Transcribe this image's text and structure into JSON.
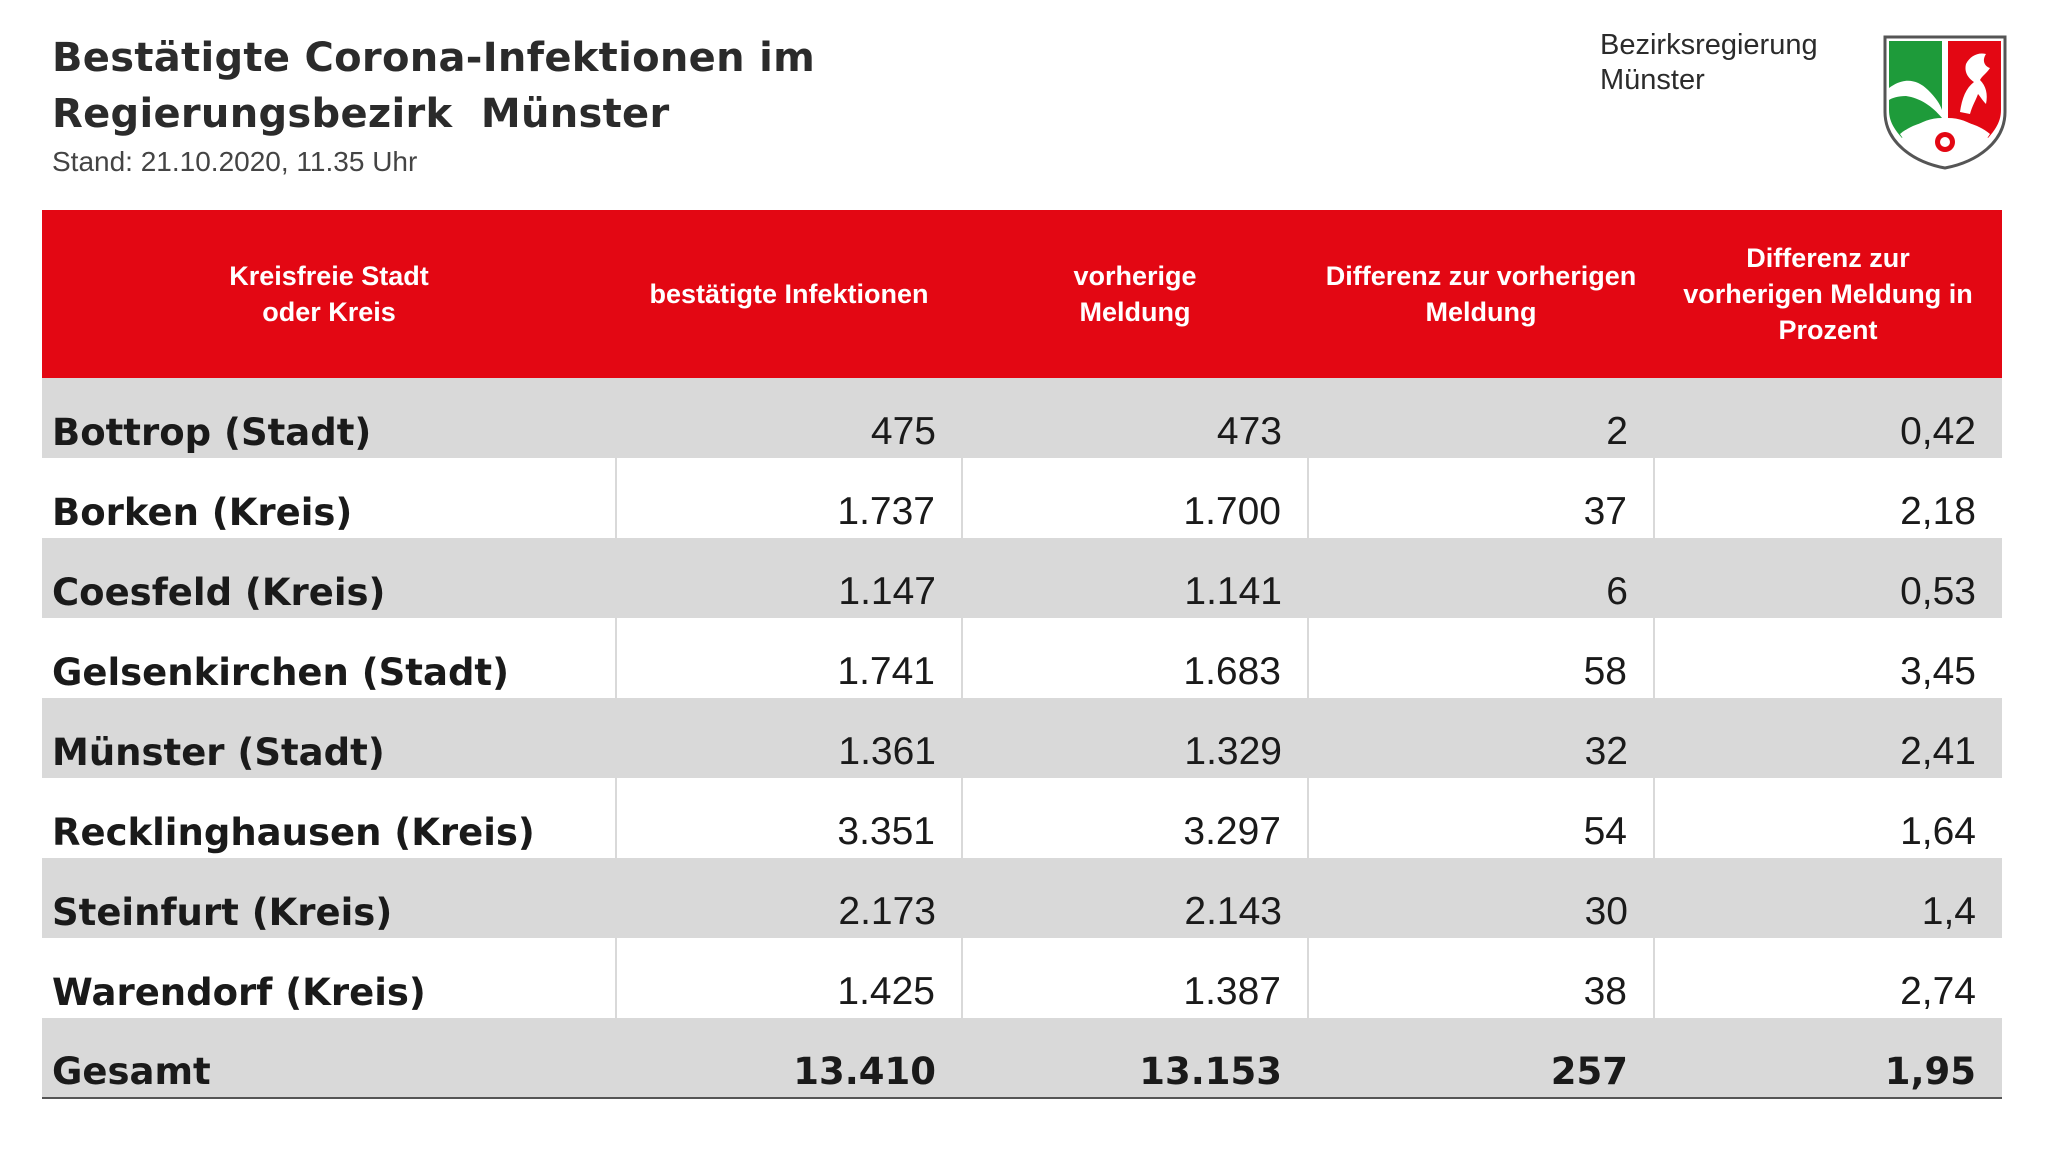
{
  "header": {
    "title_line1": "Bestätigte Corona-Infektionen im",
    "title_line2": "Regierungsbezirk  Münster",
    "stand": "Stand: 21.10.2020, 11.35 Uhr"
  },
  "agency": {
    "line1": "Bezirksregierung",
    "line2": "Münster",
    "logo_icon": "nrw-coat-of-arms-icon",
    "colors": {
      "green": "#1e9b3a",
      "red": "#e30713",
      "white": "#ffffff"
    }
  },
  "table": {
    "header_color": "#e30713",
    "stripe_color": "#d9d9d9",
    "columns": [
      {
        "line1": "Kreisfreie Stadt",
        "line2": "oder Kreis",
        "line3": ""
      },
      {
        "line1": "bestätigte Infektionen",
        "line2": "",
        "line3": ""
      },
      {
        "line1": "vorherige",
        "line2": "Meldung",
        "line3": ""
      },
      {
        "line1": "Differenz zur vorherigen",
        "line2": "Meldung",
        "line3": ""
      },
      {
        "line1": "Differenz zur",
        "line2": "vorherigen Meldung in",
        "line3": "Prozent"
      }
    ],
    "rows": [
      {
        "name": "Bottrop (Stadt)",
        "confirmed": "475",
        "previous": "473",
        "diff": "2",
        "diff_pct": "0,42"
      },
      {
        "name": "Borken (Kreis)",
        "confirmed": "1.737",
        "previous": "1.700",
        "diff": "37",
        "diff_pct": "2,18"
      },
      {
        "name": "Coesfeld (Kreis)",
        "confirmed": "1.147",
        "previous": "1.141",
        "diff": "6",
        "diff_pct": "0,53"
      },
      {
        "name": "Gelsenkirchen (Stadt)",
        "confirmed": "1.741",
        "previous": "1.683",
        "diff": "58",
        "diff_pct": "3,45"
      },
      {
        "name": "Münster (Stadt)",
        "confirmed": "1.361",
        "previous": "1.329",
        "diff": "32",
        "diff_pct": "2,41"
      },
      {
        "name": "Recklinghausen (Kreis)",
        "confirmed": "3.351",
        "previous": "3.297",
        "diff": "54",
        "diff_pct": "1,64"
      },
      {
        "name": "Steinfurt (Kreis)",
        "confirmed": "2.173",
        "previous": "2.143",
        "diff": "30",
        "diff_pct": "1,4"
      },
      {
        "name": "Warendorf (Kreis)",
        "confirmed": "1.425",
        "previous": "1.387",
        "diff": "38",
        "diff_pct": "2,74"
      }
    ],
    "total": {
      "name": "Gesamt",
      "confirmed": "13.410",
      "previous": "13.153",
      "diff": "257",
      "diff_pct": "1,95"
    }
  }
}
